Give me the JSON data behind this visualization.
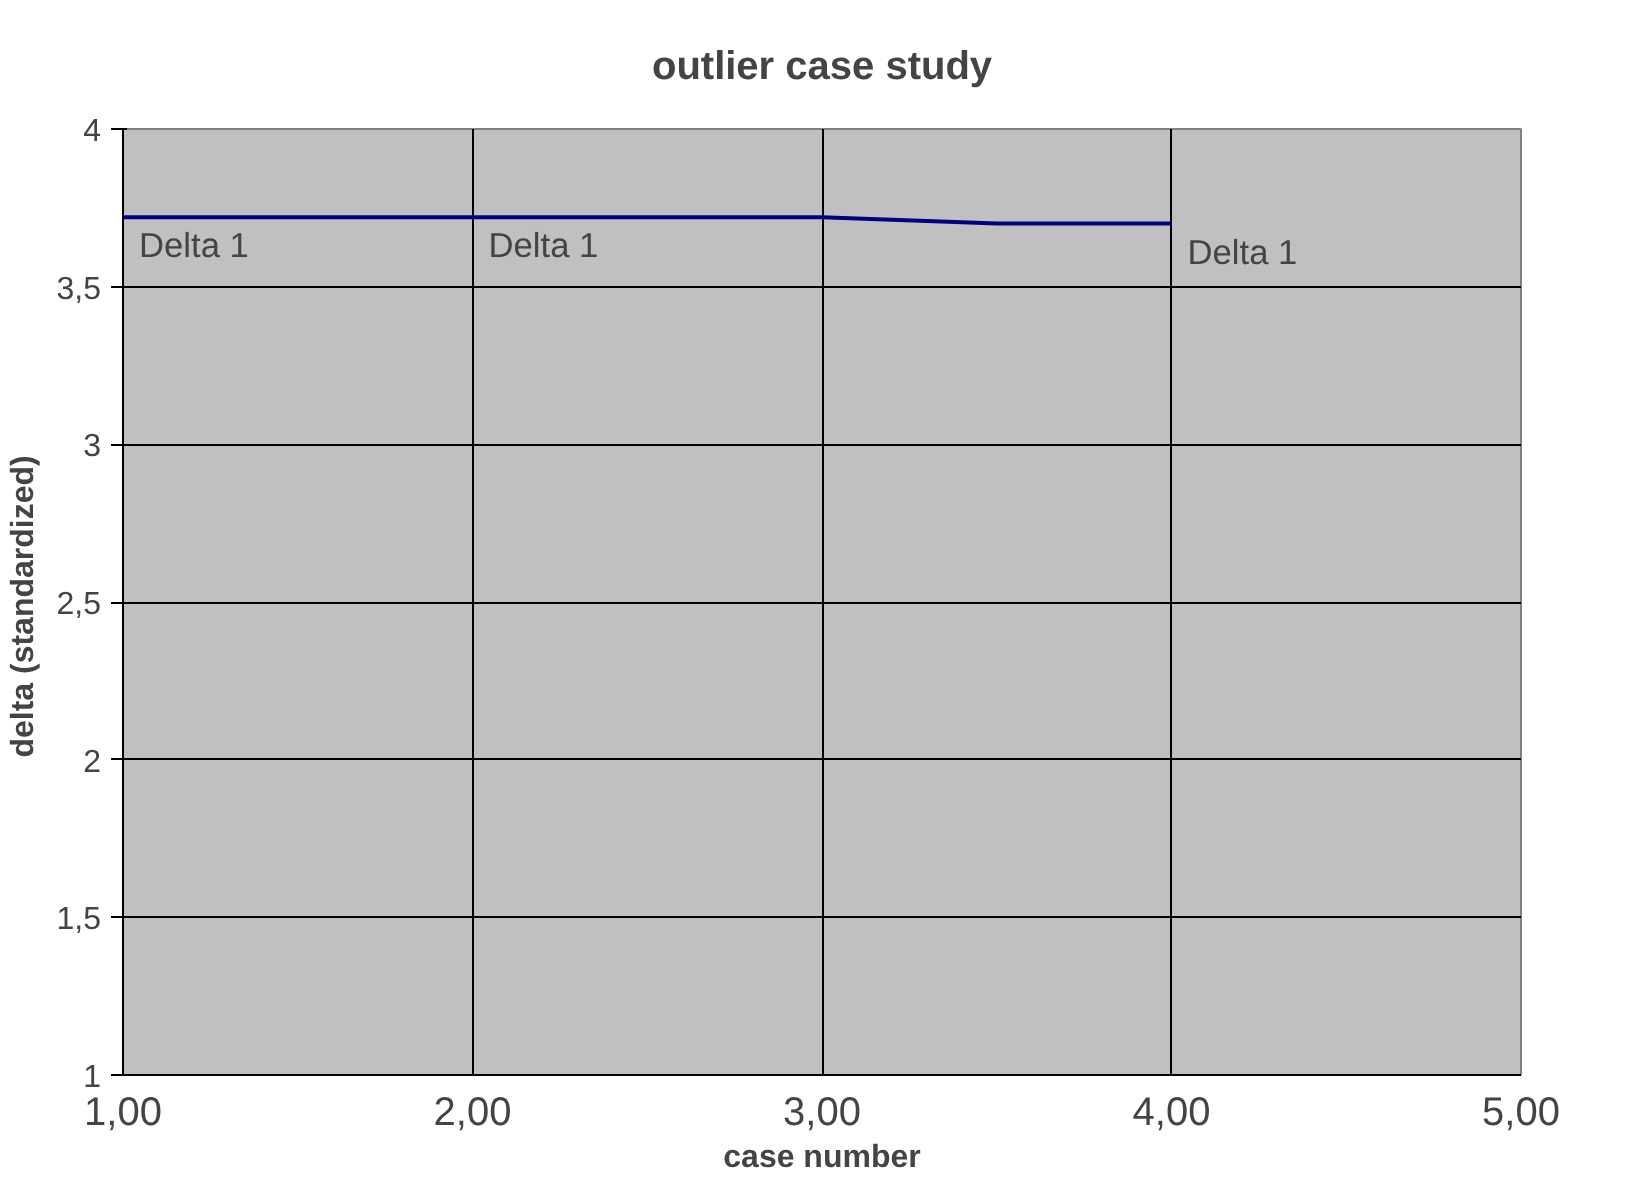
{
  "chart_data": {
    "type": "line",
    "title": "outlier case study",
    "xlabel": "case number",
    "ylabel": "delta  (standardized)",
    "x": [
      1,
      2,
      3,
      3.5,
      4
    ],
    "series": [
      {
        "color": "#000080",
        "values": [
          3.72,
          3.72,
          3.72,
          3.7,
          3.7
        ]
      }
    ],
    "xlim": [
      1,
      5
    ],
    "xticks": [
      {
        "value": 1,
        "label": "1,00"
      },
      {
        "value": 2,
        "label": "2,00"
      },
      {
        "value": 3,
        "label": "3,00"
      },
      {
        "value": 4,
        "label": "4,00"
      },
      {
        "value": 5,
        "label": "5,00"
      }
    ],
    "ylim": [
      1,
      4
    ],
    "yticks": [
      {
        "value": 1,
        "label": "1"
      },
      {
        "value": 1.5,
        "label": "1,5"
      },
      {
        "value": 2,
        "label": "2"
      },
      {
        "value": 2.5,
        "label": "2,5"
      },
      {
        "value": 3,
        "label": "3"
      },
      {
        "value": 3.5,
        "label": "3,5"
      },
      {
        "value": 4,
        "label": "4"
      }
    ],
    "grid": true,
    "marker": "none",
    "line_style": "solid",
    "annotations": [
      {
        "text": "Delta 1",
        "x": 1,
        "y": 3.72
      },
      {
        "text": "Delta 1",
        "x": 2,
        "y": 3.72
      },
      {
        "text": "Delta 1",
        "x": 4,
        "y": 3.7
      }
    ]
  }
}
